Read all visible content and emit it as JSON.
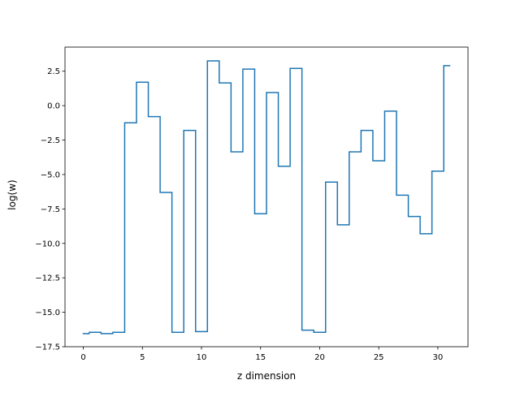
{
  "chart_data": {
    "type": "line",
    "drawstyle": "steps-mid",
    "title": "",
    "xlabel": "z dimension",
    "ylabel": "log(w)",
    "xlim": [
      -1.55,
      32.55
    ],
    "ylim": [
      -17.5,
      4.25
    ],
    "xticks": [
      0,
      5,
      10,
      15,
      20,
      25,
      30
    ],
    "xtick_labels": [
      "0",
      "5",
      "10",
      "15",
      "20",
      "25",
      "30"
    ],
    "yticks": [
      -17.5,
      -15.0,
      -12.5,
      -10.0,
      -7.5,
      -5.0,
      -2.5,
      0.0,
      2.5
    ],
    "ytick_labels": [
      "−17.5",
      "−15.0",
      "−12.5",
      "−10.0",
      "−7.5",
      "−5.0",
      "−2.5",
      "0.0",
      "2.5"
    ],
    "grid": false,
    "series": [
      {
        "color": "#1f77b4",
        "x": [
          0,
          1,
          2,
          3,
          4,
          5,
          6,
          7,
          8,
          9,
          10,
          11,
          12,
          13,
          14,
          15,
          16,
          17,
          18,
          19,
          20,
          21,
          22,
          23,
          24,
          25,
          26,
          27,
          28,
          29,
          30,
          31
        ],
        "values": [
          -16.55,
          -16.45,
          -16.55,
          -16.45,
          -1.25,
          1.7,
          -0.8,
          -6.3,
          -16.45,
          -1.8,
          -16.4,
          3.25,
          1.65,
          -3.35,
          2.65,
          -7.85,
          0.95,
          -4.4,
          2.7,
          -16.3,
          -16.45,
          -5.55,
          -8.65,
          -3.35,
          -1.8,
          -4.0,
          -0.4,
          -6.5,
          -8.05,
          -9.3,
          -4.75,
          2.9
        ]
      }
    ]
  }
}
